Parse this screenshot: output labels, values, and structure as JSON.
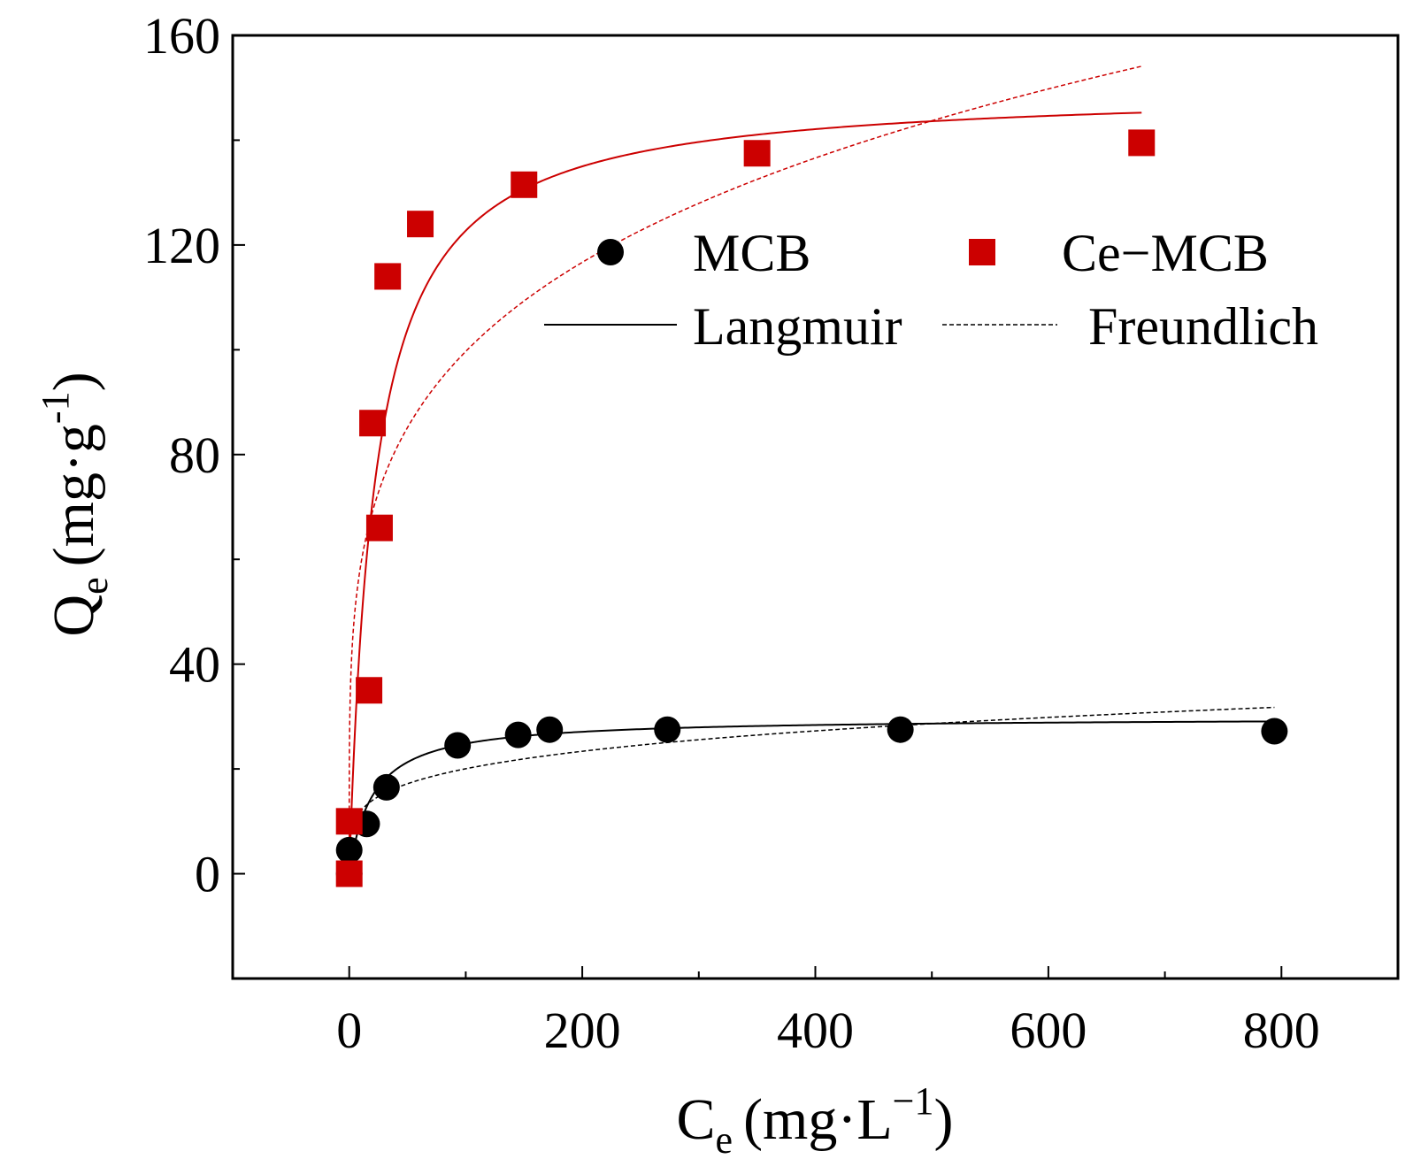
{
  "chart_data": {
    "type": "scatter",
    "xlabel": {
      "base": "C",
      "sub": "e",
      "unit_pre": "(mg·L",
      "unit_sup": "−1",
      "unit_post": ")"
    },
    "ylabel": {
      "base": "Q",
      "sub": "e",
      "unit_pre": "(mg·g",
      "unit_sup": "-1",
      "unit_post": ")"
    },
    "xlim": [
      -100,
      900
    ],
    "ylim": [
      -20,
      160
    ],
    "x_ticks": [
      0,
      200,
      400,
      600,
      800
    ],
    "x_tick_labels": [
      "0",
      "200",
      "400",
      "600",
      "800"
    ],
    "y_ticks": [
      0,
      40,
      80,
      120,
      160
    ],
    "y_tick_labels": [
      "0",
      "40",
      "80",
      "120",
      "160"
    ],
    "series": [
      {
        "name": "MCB",
        "marker": "circle",
        "color": "#000000",
        "points": [
          [
            0,
            0
          ],
          [
            0,
            4.5
          ],
          [
            15,
            9.5
          ],
          [
            32,
            16.5
          ],
          [
            93,
            24.5
          ],
          [
            145,
            26.5
          ],
          [
            172,
            27.5
          ],
          [
            273,
            27.5
          ],
          [
            473,
            27.5
          ],
          [
            794,
            27.2
          ]
        ],
        "langmuir": {
          "qmax": 29.8,
          "KL": 0.05
        },
        "freundlich": {
          "KF": 7.2,
          "n": 4.5
        }
      },
      {
        "name": "Ce-MCB",
        "marker": "square",
        "color": "#cc0000",
        "points": [
          [
            0,
            0
          ],
          [
            0,
            10
          ],
          [
            17,
            35
          ],
          [
            20,
            86
          ],
          [
            26,
            66
          ],
          [
            33,
            114
          ],
          [
            61,
            124
          ],
          [
            150,
            131.5
          ],
          [
            350,
            137.5
          ],
          [
            680,
            139.5
          ]
        ],
        "langmuir": {
          "qmax": 150,
          "KL": 0.045
        },
        "freundlich": {
          "KF": 35,
          "n": 4.4
        }
      }
    ],
    "legend": {
      "position": "top-right",
      "entries": [
        {
          "label": "MCB",
          "kind": "circle"
        },
        {
          "label": "Ce−MCB",
          "kind": "square"
        },
        {
          "label": "Langmuir",
          "kind": "solid-line"
        },
        {
          "label": "Freundlich",
          "kind": "dashed-line"
        }
      ]
    }
  }
}
